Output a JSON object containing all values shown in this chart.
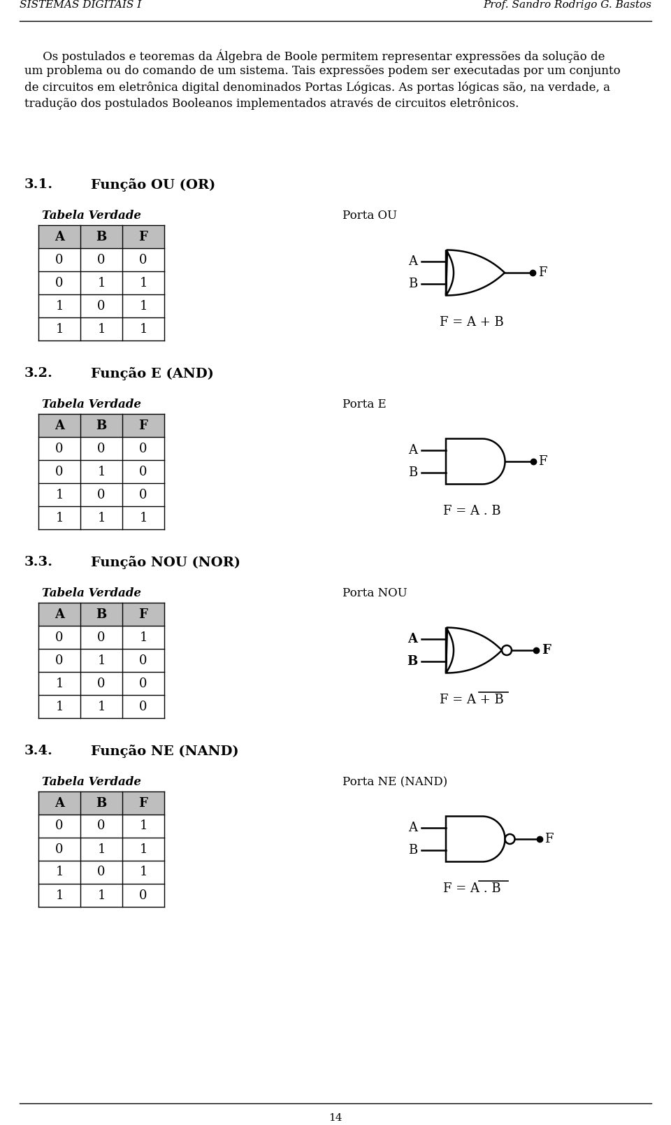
{
  "header_left": "SISTEMAS DIGITAIS I",
  "header_right": "Prof. Sandro Rodrigo G. Bastos",
  "intro_lines": [
    "     Os postulados e teoremas da Álgebra de Boole permitem representar expressões da solução de",
    "um problema ou do comando de um sistema. Tais expressões podem ser executadas por um conjunto",
    "de circuitos em eletrônica digital denominados Portas Lógicas. As portas lógicas são, na verdade, a",
    "tradução dos postulados Booleanos implementados através de circuitos eletrônicos."
  ],
  "section1_num": "3.1.",
  "section1_name": "Função OU (OR)",
  "section2_num": "3.2.",
  "section2_name": "Função E (AND)",
  "section3_num": "3.3.",
  "section3_name": "Função NOU (NOR)",
  "section4_num": "3.4.",
  "section4_name": "Função NE (NAND)",
  "tabela_verdade": "Tabela Verdade",
  "or_table": [
    [
      0,
      0,
      0
    ],
    [
      0,
      1,
      1
    ],
    [
      1,
      0,
      1
    ],
    [
      1,
      1,
      1
    ]
  ],
  "and_table": [
    [
      0,
      0,
      0
    ],
    [
      0,
      1,
      0
    ],
    [
      1,
      0,
      0
    ],
    [
      1,
      1,
      1
    ]
  ],
  "nor_table": [
    [
      0,
      0,
      1
    ],
    [
      0,
      1,
      0
    ],
    [
      1,
      0,
      0
    ],
    [
      1,
      1,
      0
    ]
  ],
  "nand_table": [
    [
      0,
      0,
      1
    ],
    [
      0,
      1,
      1
    ],
    [
      1,
      0,
      1
    ],
    [
      1,
      1,
      0
    ]
  ],
  "porta_ou": "Porta OU",
  "porta_e": "Porta E",
  "porta_nou": "Porta NOU",
  "porta_ne": "Porta NE (NAND)",
  "page_number": "14",
  "bg_color": "#ffffff",
  "table_header_color": "#bebebe",
  "col_headers": [
    "A",
    "B",
    "F"
  ]
}
